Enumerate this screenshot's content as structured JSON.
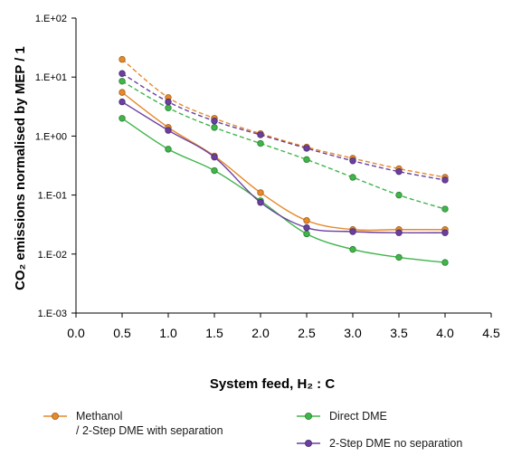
{
  "chart_data": {
    "type": "line",
    "y_scale": "log",
    "xlim": [
      0.0,
      4.5
    ],
    "ylim": [
      "1.E-03",
      "1.E+02"
    ],
    "x_ticks": [
      "0.0",
      "0.5",
      "1.0",
      "1.5",
      "2.0",
      "2.5",
      "3.0",
      "3.5",
      "4.0",
      "4.5"
    ],
    "y_ticks": [
      "1.E-03",
      "1.E-02",
      "1.E-01",
      "1.E+00",
      "1.E+01",
      "1.E+02"
    ],
    "xlabel": "System feed,  H₂ : C",
    "ylabel": "CO₂ emissions normalised by MEP / 1",
    "x": [
      0.5,
      1.0,
      1.5,
      2.0,
      2.5,
      3.0,
      3.5,
      4.0
    ],
    "series": [
      {
        "name": "Methanol / 2-Step DME with separation",
        "style": "solid",
        "color": "#e6892a",
        "values": [
          5.5,
          1.4,
          0.46,
          0.11,
          0.037,
          0.026,
          0.026,
          0.026
        ]
      },
      {
        "name": "Methanol / 2-Step DME with separation",
        "style": "dashed",
        "color": "#e6892a",
        "values": [
          20,
          4.5,
          2.0,
          1.1,
          0.65,
          0.42,
          0.28,
          0.2
        ]
      },
      {
        "name": "Direct DME",
        "style": "solid",
        "color": "#3fb54a",
        "values": [
          2.0,
          0.6,
          0.26,
          0.08,
          0.022,
          0.012,
          0.0088,
          0.0072
        ]
      },
      {
        "name": "Direct DME",
        "style": "dashed",
        "color": "#3fb54a",
        "values": [
          8.5,
          3.0,
          1.4,
          0.75,
          0.4,
          0.2,
          0.1,
          0.058
        ]
      },
      {
        "name": "2-Step DME no separation",
        "style": "solid",
        "color": "#6a3fa0",
        "values": [
          3.8,
          1.25,
          0.44,
          0.075,
          0.028,
          0.024,
          0.023,
          0.023
        ]
      },
      {
        "name": "2-Step DME no separation",
        "style": "dashed",
        "color": "#6a3fa0",
        "values": [
          11.5,
          3.8,
          1.8,
          1.05,
          0.62,
          0.38,
          0.25,
          0.18
        ]
      }
    ],
    "legend": [
      {
        "label_line1": "Methanol",
        "label_line2": "/ 2-Step DME with separation",
        "color": "#e6892a"
      },
      {
        "label_line1": "Direct DME",
        "label_line2": "",
        "color": "#3fb54a"
      },
      {
        "label_line1": "2-Step DME no separation",
        "label_line2": "",
        "color": "#6a3fa0"
      }
    ],
    "legend_placement": "bottom",
    "grid": false
  }
}
